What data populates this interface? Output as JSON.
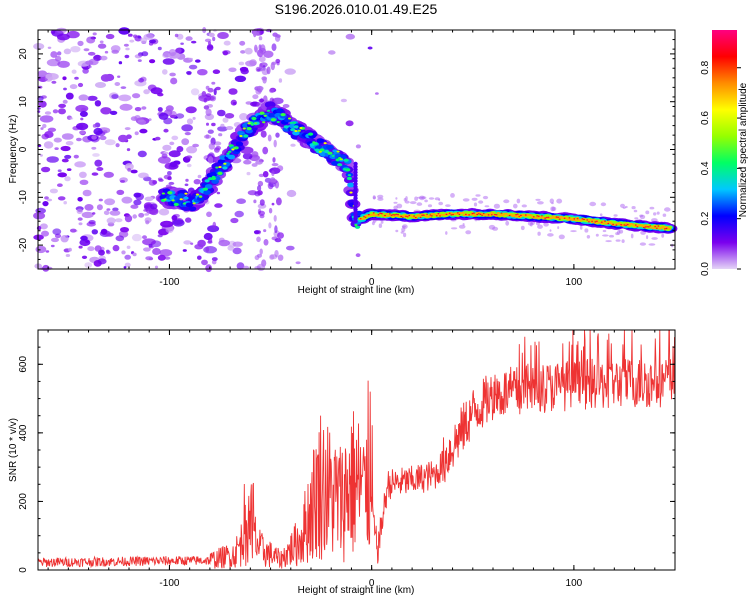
{
  "title": "S196.2026.010.01.49.E25",
  "chart_data": [
    {
      "type": "heatmap",
      "name": "spectrogram",
      "xlabel": "Height of straight line (km)",
      "ylabel": "Frequency (Hz)",
      "xlim": [
        -165,
        150
      ],
      "ylim": [
        -25,
        25
      ],
      "xticks": [
        -100,
        0,
        100
      ],
      "yticks": [
        -20,
        -10,
        0,
        10,
        20
      ],
      "colorbar": {
        "label": "Normalized spectral amplitude",
        "lim": [
          0.0,
          0.95
        ],
        "ticks": [
          0.0,
          0.2,
          0.4,
          0.6,
          0.8
        ],
        "colors": [
          "#e4d4f6",
          "#7a00ee",
          "#0000ff",
          "#00c8ff",
          "#00ff64",
          "#96ff00",
          "#ffff00",
          "#ff8c00",
          "#ff0000",
          "#ff0080"
        ]
      },
      "ridge": [
        {
          "x": -100,
          "y": -10
        },
        {
          "x": -88,
          "y": -11
        },
        {
          "x": -80,
          "y": -7
        },
        {
          "x": -70,
          "y": -1
        },
        {
          "x": -60,
          "y": 5
        },
        {
          "x": -50,
          "y": 8
        },
        {
          "x": -40,
          "y": 5
        },
        {
          "x": -30,
          "y": 2
        },
        {
          "x": -20,
          "y": -1
        },
        {
          "x": -12,
          "y": -3
        },
        {
          "x": -8,
          "y": -15
        },
        {
          "x": 0,
          "y": -13.5
        },
        {
          "x": 20,
          "y": -14
        },
        {
          "x": 40,
          "y": -13.5
        },
        {
          "x": 60,
          "y": -13.5
        },
        {
          "x": 80,
          "y": -14
        },
        {
          "x": 100,
          "y": -14.5
        },
        {
          "x": 120,
          "y": -15.5
        },
        {
          "x": 148,
          "y": -16.5
        }
      ]
    },
    {
      "type": "line",
      "name": "snr",
      "xlabel": "Height of straight line (km)",
      "ylabel": "SNR (10 * v/v)",
      "xlim": [
        -165,
        150
      ],
      "ylim": [
        0,
        700
      ],
      "xticks": [
        -100,
        0,
        100
      ],
      "yticks": [
        0,
        200,
        400,
        600
      ],
      "color": "#ee3333",
      "baseline": [
        {
          "x": -165,
          "y": 22
        },
        {
          "x": -80,
          "y": 28
        },
        {
          "x": -68,
          "y": 45
        },
        {
          "x": -60,
          "y": 120
        },
        {
          "x": -55,
          "y": 60
        },
        {
          "x": -45,
          "y": 30
        },
        {
          "x": -35,
          "y": 90
        },
        {
          "x": -30,
          "y": 180
        },
        {
          "x": -25,
          "y": 260
        },
        {
          "x": -20,
          "y": 220
        },
        {
          "x": -15,
          "y": 200
        },
        {
          "x": -10,
          "y": 260
        },
        {
          "x": -5,
          "y": 240
        },
        {
          "x": 0,
          "y": 160
        },
        {
          "x": 3,
          "y": 60
        },
        {
          "x": 8,
          "y": 250
        },
        {
          "x": 20,
          "y": 260
        },
        {
          "x": 32,
          "y": 280
        },
        {
          "x": 42,
          "y": 380
        },
        {
          "x": 50,
          "y": 460
        },
        {
          "x": 60,
          "y": 510
        },
        {
          "x": 80,
          "y": 530
        },
        {
          "x": 100,
          "y": 540
        },
        {
          "x": 150,
          "y": 550
        }
      ]
    }
  ]
}
